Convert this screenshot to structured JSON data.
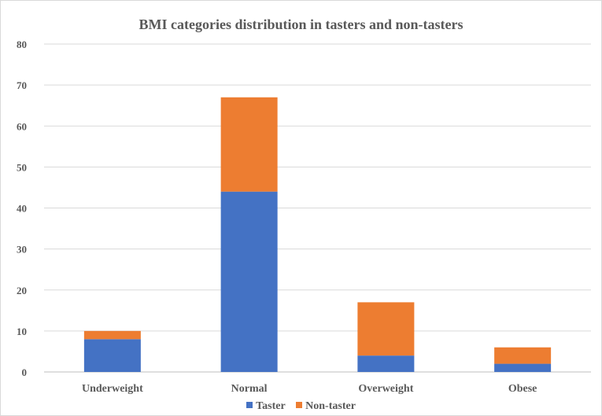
{
  "chart_data": {
    "type": "bar",
    "stacked": true,
    "title": "BMI categories distribution in tasters and non-tasters",
    "categories": [
      "Underweight",
      "Normal",
      "Overweight",
      "Obese"
    ],
    "series": [
      {
        "name": "Taster",
        "values": [
          8,
          44,
          4,
          2
        ],
        "color": "#4472C4"
      },
      {
        "name": "Non-taster",
        "values": [
          2,
          23,
          13,
          4
        ],
        "color": "#ED7D31"
      }
    ],
    "ylim": [
      0,
      80
    ],
    "yticks": [
      "0",
      "10",
      "20",
      "30",
      "40",
      "50",
      "60",
      "70",
      "80"
    ],
    "grid": true,
    "legend": "bottom"
  }
}
